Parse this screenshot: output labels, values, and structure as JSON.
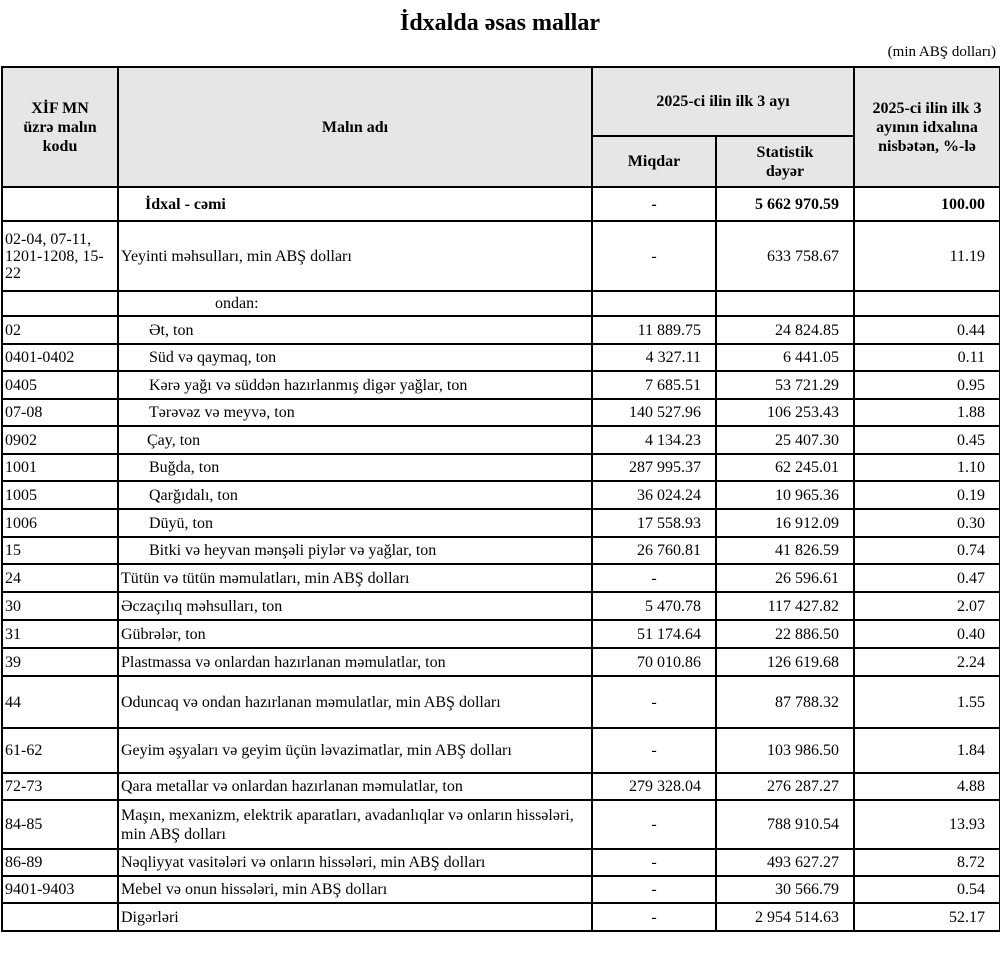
{
  "title": "İdxalda əsas mallar",
  "unit": "(min ABŞ dolları)",
  "headers": {
    "code": "XİF MN üzrə malın kodu",
    "name": "Malın adı",
    "period": "2025-ci ilin ilk 3 ayı",
    "quantity": "Miqdar",
    "value": "Statistik dəyər",
    "share": "2025-ci ilin ilk 3 ayının idxalına nisbətən, %-lə"
  },
  "rows": [
    {
      "code": "",
      "name": "İdxal - cəmi",
      "quantity": "-",
      "value": "5 662 970.59",
      "share": "100.00",
      "bold": true
    },
    {
      "code": "02-04, 07-11, 1201-1208, 15-22",
      "name": "Yeyinti məhsulları, min ABŞ dolları",
      "quantity": "-",
      "value": "633 758.67",
      "share": "11.19"
    },
    {
      "code": "",
      "name": "ondan:",
      "quantity": "",
      "value": "",
      "share": ""
    },
    {
      "code": "02",
      "name": "Ət, ton",
      "quantity": "11 889.75",
      "value": "24 824.85",
      "share": "0.44"
    },
    {
      "code": "0401-0402",
      "name": "Süd və qaymaq, ton",
      "quantity": "4 327.11",
      "value": "6 441.05",
      "share": "0.11"
    },
    {
      "code": "0405",
      "name": "Kərə yağı və süddən hazırlanmış digər yağlar, ton",
      "quantity": "7 685.51",
      "value": "53 721.29",
      "share": "0.95"
    },
    {
      "code": "07-08",
      "name": "Tərəvəz və meyvə, ton",
      "quantity": "140 527.96",
      "value": "106 253.43",
      "share": "1.88"
    },
    {
      "code": "0902",
      "name": "Çay, ton",
      "quantity": "4 134.23",
      "value": "25 407.30",
      "share": "0.45"
    },
    {
      "code": "1001",
      "name": "Buğda, ton",
      "quantity": "287 995.37",
      "value": "62 245.01",
      "share": "1.10"
    },
    {
      "code": "1005",
      "name": "Qarğıdalı, ton",
      "quantity": "36 024.24",
      "value": "10 965.36",
      "share": "0.19"
    },
    {
      "code": "1006",
      "name": "Düyü, ton",
      "quantity": "17 558.93",
      "value": "16 912.09",
      "share": "0.30"
    },
    {
      "code": "15",
      "name": "Bitki və heyvan mənşəli piylər və yağlar, ton",
      "quantity": "26 760.81",
      "value": "41 826.59",
      "share": "0.74"
    },
    {
      "code": "24",
      "name": "Tütün və tütün məmulatları, min ABŞ dolları",
      "quantity": "-",
      "value": "26 596.61",
      "share": "0.47"
    },
    {
      "code": "30",
      "name": "Əczaçılıq məhsulları, ton",
      "quantity": "5 470.78",
      "value": "117 427.82",
      "share": "2.07"
    },
    {
      "code": "31",
      "name": "Gübrələr, ton",
      "quantity": "51 174.64",
      "value": "22 886.50",
      "share": "0.40"
    },
    {
      "code": "39",
      "name": "Plastmassa və onlardan hazırlanan məmulatlar, ton",
      "quantity": "70 010.86",
      "value": "126 619.68",
      "share": "2.24"
    },
    {
      "code": "44",
      "name": "Oduncaq və ondan hazırlanan məmulatlar, min ABŞ dolları",
      "quantity": "-",
      "value": "87 788.32",
      "share": "1.55"
    },
    {
      "code": "61-62",
      "name": "Geyim əşyaları və geyim üçün ləvazimatlar, min ABŞ dolları",
      "quantity": "-",
      "value": "103 986.50",
      "share": "1.84"
    },
    {
      "code": "72-73",
      "name": "Qara metallar və onlardan hazırlanan məmulatlar, ton",
      "quantity": "279 328.04",
      "value": "276 287.27",
      "share": "4.88"
    },
    {
      "code": "84-85",
      "name": "Maşın, mexanizm, elektrik aparatları, avadanlıqlar və onların hissələri, min ABŞ dolları",
      "quantity": "-",
      "value": "788 910.54",
      "share": "13.93"
    },
    {
      "code": "86-89",
      "name": "Nəqliyyat vasitələri və onların hissələri, min ABŞ dolları",
      "quantity": "-",
      "value": "493 627.27",
      "share": "8.72"
    },
    {
      "code": "9401-9403",
      "name": "Mebel və onun hissələri, min ABŞ dolları",
      "quantity": "-",
      "value": "30 566.79",
      "share": "0.54"
    },
    {
      "code": "",
      "name": "Digərləri",
      "quantity": "-",
      "value": "2 954 514.63",
      "share": "52.17"
    }
  ]
}
